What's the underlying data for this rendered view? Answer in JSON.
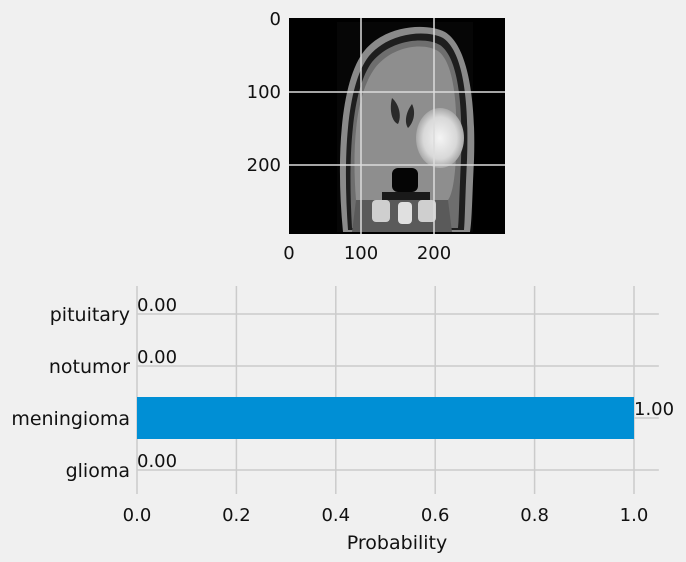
{
  "chart_data": [
    {
      "type": "image",
      "image": "brain-mri-coronal-scan",
      "xticks": [
        "0",
        "100",
        "200"
      ],
      "yticks": [
        "0",
        "100",
        "200"
      ],
      "xlim": [
        0,
        300
      ],
      "ylim": [
        300,
        0
      ],
      "grid": true
    },
    {
      "type": "bar",
      "orientation": "horizontal",
      "categories": [
        "glioma",
        "meningioma",
        "notumor",
        "pituitary"
      ],
      "values": [
        0.0,
        1.0,
        0.0,
        0.0
      ],
      "value_labels": [
        "0.00",
        "1.00",
        "0.00",
        "0.00"
      ],
      "xlabel": "Probability",
      "ylabel": "",
      "xlim": [
        0,
        1.05
      ],
      "xticks": [
        "0.0",
        "0.2",
        "0.4",
        "0.6",
        "0.8",
        "1.0"
      ],
      "grid": true,
      "bar_color": "#008fd5"
    }
  ],
  "style": {
    "background": "#f0f0f0",
    "grid_color": "#cbcbcb"
  }
}
